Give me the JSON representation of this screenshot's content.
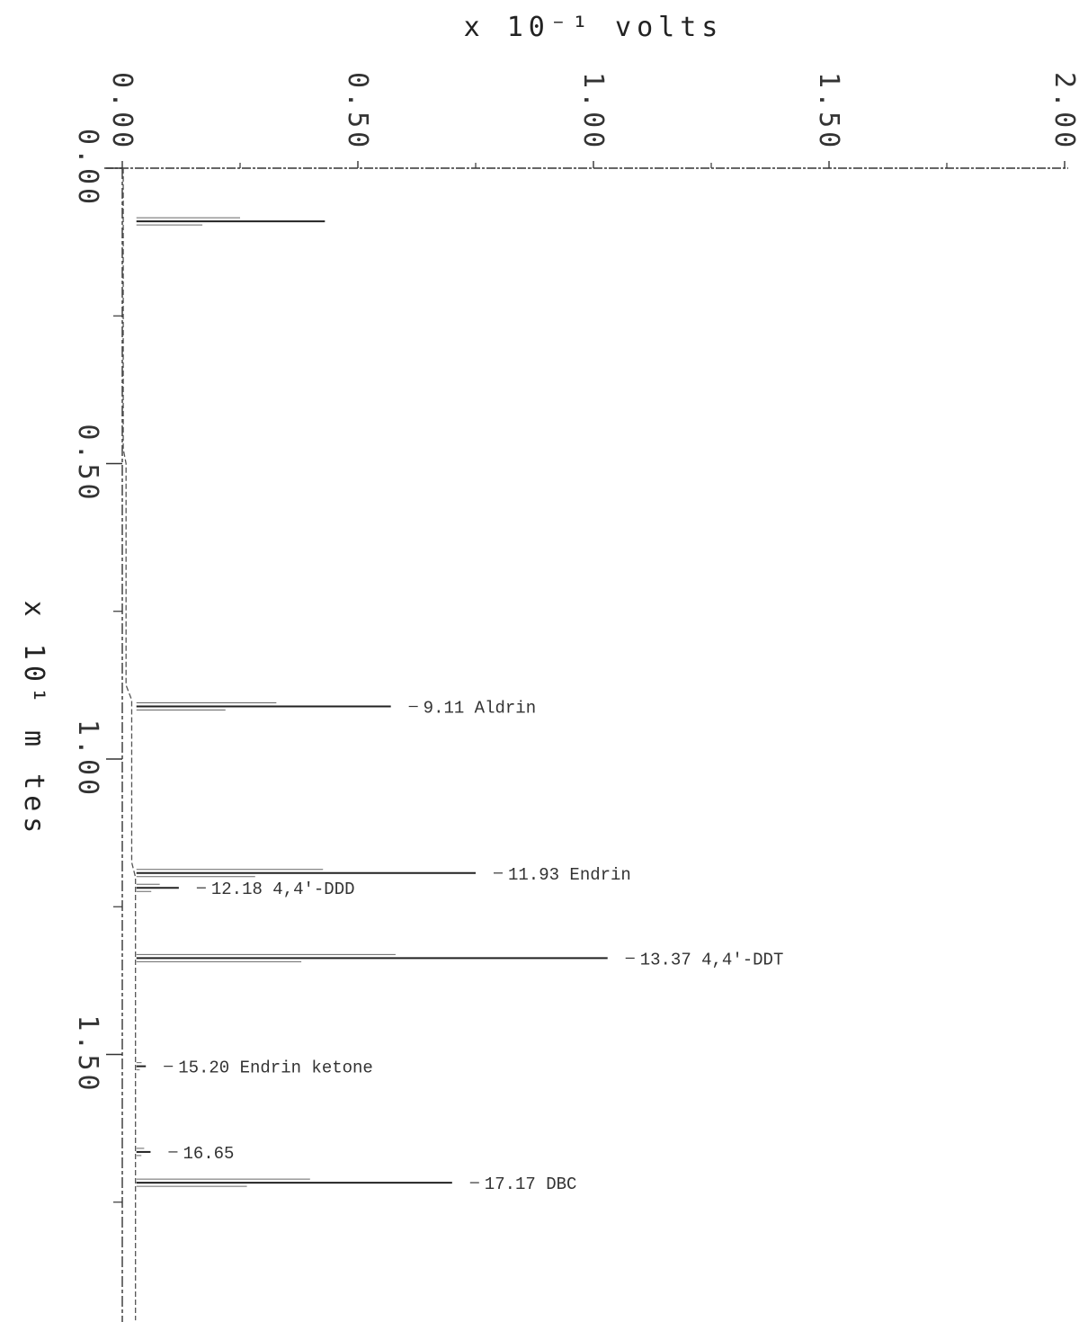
{
  "chart_data": {
    "type": "line",
    "orientation": "rotated chromatogram (time runs downward, signal to the right)",
    "xlabel": "x 10⁻¹ volts",
    "ylabel": "x 10¹ m   tes",
    "x_ticks": [
      "0.00",
      "0.50",
      "1.00",
      "1.50",
      "2.00"
    ],
    "y_ticks": [
      "0.00",
      "0.50",
      "1.00",
      "1.50"
    ],
    "xlim": [
      0,
      2.0
    ],
    "ylim": [
      0,
      1.95
    ],
    "grid": false,
    "peaks": [
      {
        "time": 0.9,
        "height": 0.43,
        "label": ""
      },
      {
        "time": 9.11,
        "height": 0.57,
        "label": "9.11 Aldrin"
      },
      {
        "time": 11.93,
        "height": 0.75,
        "label": "11.93 Endrin"
      },
      {
        "time": 12.18,
        "height": 0.12,
        "label": "12.18 4,4'-DDD"
      },
      {
        "time": 13.37,
        "height": 1.03,
        "label": "13.37 4,4'-DDT"
      },
      {
        "time": 15.2,
        "height": 0.05,
        "label": "15.20 Endrin ketone"
      },
      {
        "time": 16.65,
        "height": 0.06,
        "label": "16.65"
      },
      {
        "time": 17.17,
        "height": 0.7,
        "label": "17.17 DBC"
      }
    ]
  }
}
